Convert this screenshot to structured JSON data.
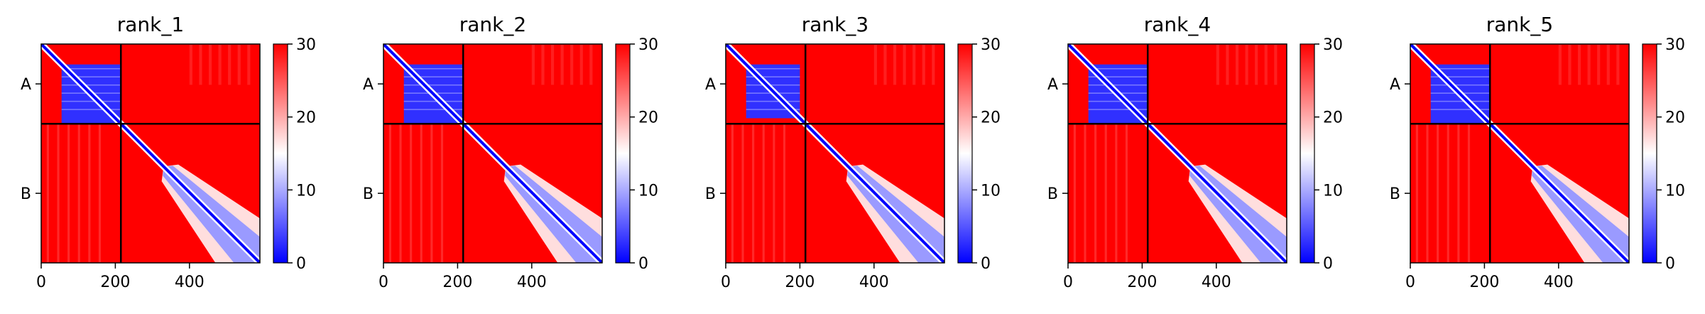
{
  "chart_data": [
    {
      "type": "heatmap",
      "title": "rank_1",
      "chains": [
        {
          "label": "A",
          "start": 0,
          "end": 215
        },
        {
          "label": "B",
          "start": 215,
          "end": 590
        }
      ],
      "x_ticks": [
        "0",
        "200",
        "400"
      ],
      "x_tick_values": [
        0,
        200,
        400
      ],
      "xlim": [
        0,
        590
      ],
      "colorbar": {
        "ticks": [
          "0",
          "10",
          "20",
          "30"
        ],
        "tick_values": [
          0,
          10,
          20,
          30
        ],
        "range": [
          0,
          30
        ],
        "colors": [
          "#0000ff",
          "#ffffff",
          "#ff0000"
        ]
      },
      "a_block_end": 215,
      "b_block_start": 330
    },
    {
      "type": "heatmap",
      "title": "rank_2",
      "chains": [
        {
          "label": "A",
          "start": 0,
          "end": 215
        },
        {
          "label": "B",
          "start": 215,
          "end": 590
        }
      ],
      "x_ticks": [
        "0",
        "200",
        "400"
      ],
      "x_tick_values": [
        0,
        200,
        400
      ],
      "xlim": [
        0,
        590
      ],
      "colorbar": {
        "ticks": [
          "0",
          "10",
          "20",
          "30"
        ],
        "tick_values": [
          0,
          10,
          20,
          30
        ],
        "range": [
          0,
          30
        ],
        "colors": [
          "#0000ff",
          "#ffffff",
          "#ff0000"
        ]
      },
      "a_block_end": 215,
      "b_block_start": 330
    },
    {
      "type": "heatmap",
      "title": "rank_3",
      "chains": [
        {
          "label": "A",
          "start": 0,
          "end": 215
        },
        {
          "label": "B",
          "start": 215,
          "end": 590
        }
      ],
      "x_ticks": [
        "0",
        "200",
        "400"
      ],
      "x_tick_values": [
        0,
        200,
        400
      ],
      "xlim": [
        0,
        590
      ],
      "colorbar": {
        "ticks": [
          "0",
          "10",
          "20",
          "30"
        ],
        "tick_values": [
          0,
          10,
          20,
          30
        ],
        "range": [
          0,
          30
        ],
        "colors": [
          "#0000ff",
          "#ffffff",
          "#ff0000"
        ]
      },
      "a_block_end": 200,
      "b_block_start": 330
    },
    {
      "type": "heatmap",
      "title": "rank_4",
      "chains": [
        {
          "label": "A",
          "start": 0,
          "end": 215
        },
        {
          "label": "B",
          "start": 215,
          "end": 590
        }
      ],
      "x_ticks": [
        "0",
        "200",
        "400"
      ],
      "x_tick_values": [
        0,
        200,
        400
      ],
      "xlim": [
        0,
        590
      ],
      "colorbar": {
        "ticks": [
          "0",
          "10",
          "20",
          "30"
        ],
        "tick_values": [
          0,
          10,
          20,
          30
        ],
        "range": [
          0,
          30
        ],
        "colors": [
          "#0000ff",
          "#ffffff",
          "#ff0000"
        ]
      },
      "a_block_end": 215,
      "b_block_start": 330
    },
    {
      "type": "heatmap",
      "title": "rank_5",
      "chains": [
        {
          "label": "A",
          "start": 0,
          "end": 215
        },
        {
          "label": "B",
          "start": 215,
          "end": 590
        }
      ],
      "x_ticks": [
        "0",
        "200",
        "400"
      ],
      "x_tick_values": [
        0,
        200,
        400
      ],
      "xlim": [
        0,
        590
      ],
      "colorbar": {
        "ticks": [
          "0",
          "10",
          "20",
          "30"
        ],
        "tick_values": [
          0,
          10,
          20,
          30
        ],
        "range": [
          0,
          30
        ],
        "colors": [
          "#0000ff",
          "#ffffff",
          "#ff0000"
        ]
      },
      "a_block_end": 215,
      "b_block_start": 330
    }
  ]
}
